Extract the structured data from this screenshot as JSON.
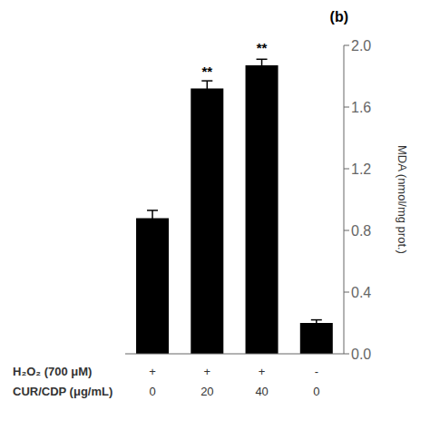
{
  "chart_data": {
    "type": "bar",
    "title": "(b)",
    "y_label": "MDA (nmol/mg prot.)",
    "values": [
      0.88,
      1.72,
      1.87,
      0.2
    ],
    "errors": [
      0.05,
      0.05,
      0.04,
      0.02
    ],
    "color": "#000000",
    "ylim": [
      0.0,
      2.0
    ],
    "yticks": [
      {
        "value": 0.0,
        "label": "0.0"
      },
      {
        "value": 0.4,
        "label": "0.4"
      },
      {
        "value": 0.8,
        "label": "0.8"
      },
      {
        "value": 1.2,
        "label": "1.2"
      },
      {
        "value": 1.6,
        "label": "1.6"
      },
      {
        "value": 2.0,
        "label": "2.0"
      }
    ],
    "significance": [
      null,
      "**",
      "**",
      null
    ],
    "x_label_rows": [
      {
        "label": "H₂O₂ (700 μM)",
        "values": [
          "+",
          "+",
          "+",
          "-"
        ]
      },
      {
        "label": "CUR/CDP (μg/mL)",
        "values": [
          "0",
          "20",
          "40",
          "0"
        ]
      }
    ],
    "grid": false
  }
}
